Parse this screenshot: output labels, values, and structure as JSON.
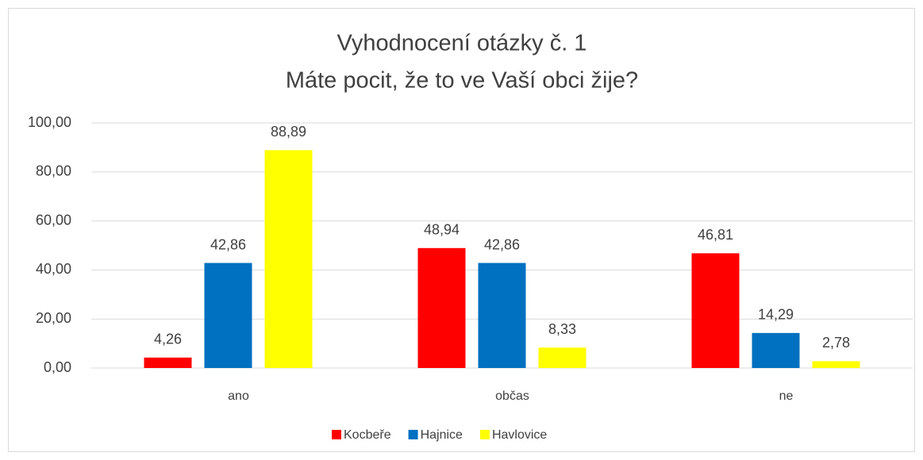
{
  "chart_data": {
    "type": "bar",
    "title": "Vyhodnocení otázky č. 1",
    "subtitle": "Máte pocit, že to ve Vaší obci žije?",
    "categories": [
      "ano",
      "občas",
      "ne"
    ],
    "series": [
      {
        "name": "Kocbeře",
        "color": "#ff0000",
        "values": [
          4.26,
          48.94,
          46.81
        ],
        "value_labels": [
          "4,26",
          "48,94",
          "46,81"
        ]
      },
      {
        "name": "Hajnice",
        "color": "#0070c0",
        "values": [
          42.86,
          42.86,
          14.29
        ],
        "value_labels": [
          "42,86",
          "42,86",
          "14,29"
        ]
      },
      {
        "name": "Havlovice",
        "color": "#ffff00",
        "values": [
          88.89,
          8.33,
          2.78
        ],
        "value_labels": [
          "88,89",
          "8,33",
          "2,78"
        ]
      }
    ],
    "ylim": [
      0,
      100
    ],
    "yticks": [
      {
        "value": 0,
        "label": "0,00"
      },
      {
        "value": 20,
        "label": "20,00"
      },
      {
        "value": 40,
        "label": "40,00"
      },
      {
        "value": 60,
        "label": "60,00"
      },
      {
        "value": 80,
        "label": "80,00"
      },
      {
        "value": 100,
        "label": "100,00"
      }
    ],
    "grid": true,
    "legend": "bottom"
  }
}
